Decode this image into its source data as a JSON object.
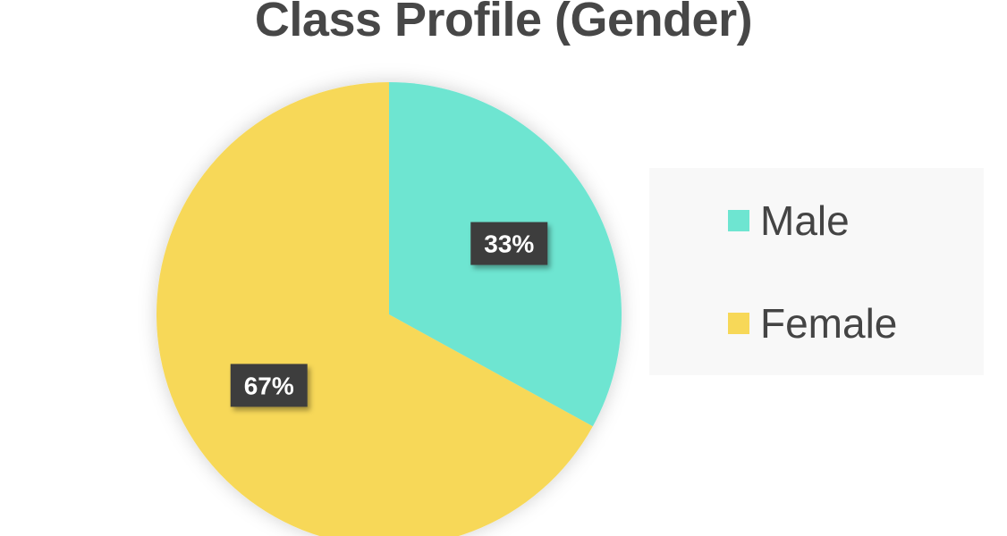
{
  "chart_data": {
    "type": "pie",
    "title": "Class Profile (Gender)",
    "slices": [
      {
        "label": "Male",
        "value": 33,
        "display": "33%",
        "color": "#6ee5d1"
      },
      {
        "label": "Female",
        "value": 67,
        "display": "67%",
        "color": "#f7d858"
      }
    ],
    "legend": {
      "position": "right"
    },
    "data_labels": true
  }
}
